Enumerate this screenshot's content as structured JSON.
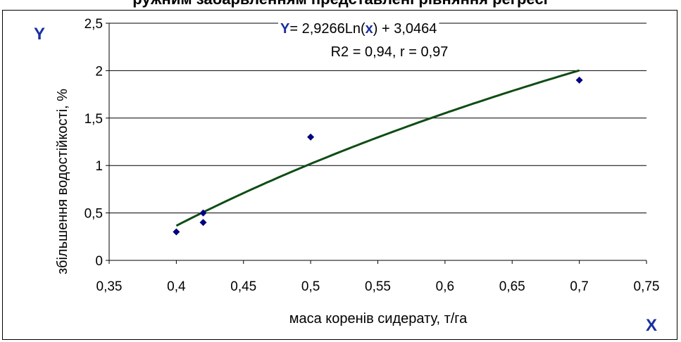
{
  "header_fragment": "ружним забарвленням представлені рівняння регресі",
  "corner_labels": {
    "y": "Y",
    "x": "X"
  },
  "equation": {
    "y_symbol": "Y",
    "part1": "= 2,9266Ln(",
    "x_symbol": "x",
    "part2": ") + 3,0464"
  },
  "stats_text": "R2 = 0,94, r = 0,97",
  "colors": {
    "points": "#000080",
    "trend": "#0f4d14",
    "symbols": "#1a2fa0",
    "grid": "#000000"
  },
  "chart_data": {
    "type": "scatter",
    "xlabel": "маса коренів сидерату, т/га",
    "ylabel": "збільшення водостійкості, %",
    "xlim": [
      0.35,
      0.75
    ],
    "ylim": [
      0,
      2.5
    ],
    "x_ticks": [
      "0,35",
      "0,4",
      "0,45",
      "0,5",
      "0,55",
      "0,6",
      "0,65",
      "0,7",
      "0,75"
    ],
    "y_ticks": [
      "0",
      "0,5",
      "1",
      "1,5",
      "2",
      "2,5"
    ],
    "grid": "horizontal",
    "points": [
      {
        "x": 0.4,
        "y": 0.3
      },
      {
        "x": 0.42,
        "y": 0.5
      },
      {
        "x": 0.42,
        "y": 0.4
      },
      {
        "x": 0.5,
        "y": 1.3
      },
      {
        "x": 0.7,
        "y": 1.9
      }
    ],
    "trendline": {
      "type": "logarithmic",
      "a": 2.9266,
      "b": 3.0464,
      "x_range": [
        0.4,
        0.7
      ]
    }
  }
}
